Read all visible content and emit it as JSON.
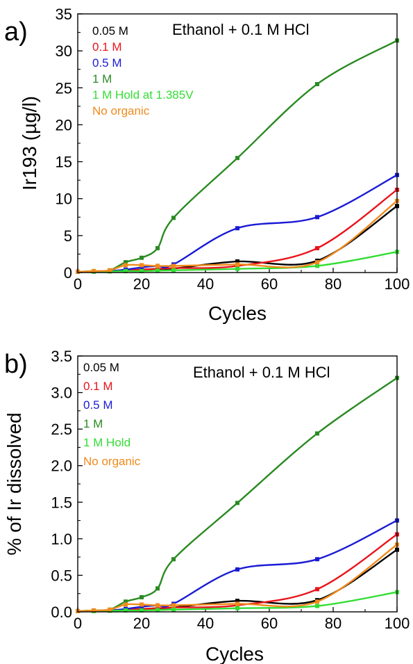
{
  "chart_data": [
    {
      "panel_label": "a)",
      "type": "line",
      "title": "Ethanol + 0.1 M HCl",
      "xlabel": "Cycles",
      "ylabel": "Ir193 (µg/l)",
      "xlim": [
        0,
        100
      ],
      "ylim": [
        0,
        35
      ],
      "xticks": [
        0,
        20,
        40,
        60,
        80,
        100
      ],
      "yticks": [
        0,
        5,
        10,
        15,
        20,
        25,
        30,
        35
      ],
      "grid": false,
      "legend": "top-left",
      "series": [
        {
          "name": "0.05 M",
          "color": "#000000",
          "x": [
            0,
            5,
            10,
            15,
            20,
            25,
            30,
            50,
            75,
            100
          ],
          "y": [
            0.1,
            0.15,
            0.2,
            0.3,
            0.4,
            0.5,
            0.55,
            1.5,
            1.6,
            9.0
          ]
        },
        {
          "name": "0.1 M",
          "color": "#e8141a",
          "x": [
            0,
            5,
            10,
            15,
            20,
            25,
            30,
            50,
            75,
            100
          ],
          "y": [
            0.1,
            0.15,
            0.2,
            0.3,
            0.4,
            0.5,
            0.6,
            0.9,
            3.3,
            11.2
          ]
        },
        {
          "name": "0.5 M",
          "color": "#1a1ad6",
          "x": [
            0,
            5,
            10,
            15,
            20,
            25,
            30,
            50,
            75,
            100
          ],
          "y": [
            0.1,
            0.15,
            0.2,
            0.4,
            0.7,
            0.9,
            1.1,
            6.0,
            7.5,
            13.2
          ]
        },
        {
          "name": "1 M",
          "color": "#2a8a22",
          "x": [
            0,
            5,
            10,
            15,
            20,
            25,
            30,
            50,
            75,
            100
          ],
          "y": [
            0.1,
            0.2,
            0.3,
            1.4,
            2.0,
            3.3,
            7.4,
            15.5,
            25.5,
            31.4
          ]
        },
        {
          "name": "1 M Hold at 1.385V",
          "color": "#33dd33",
          "x": [
            0,
            5,
            10,
            15,
            20,
            25,
            30,
            50,
            75,
            100
          ],
          "y": [
            0.1,
            0.1,
            0.15,
            0.2,
            0.2,
            0.25,
            0.3,
            0.5,
            0.9,
            2.8
          ]
        },
        {
          "name": "No organic",
          "color": "#f08a1c",
          "x": [
            0,
            5,
            10,
            15,
            20,
            25,
            30,
            50,
            75,
            100
          ],
          "y": [
            0.1,
            0.2,
            0.3,
            1.0,
            1.0,
            0.9,
            0.9,
            1.1,
            1.4,
            9.7
          ]
        }
      ]
    },
    {
      "panel_label": "b)",
      "type": "line",
      "title": "Ethanol + 0.1 M HCl",
      "xlabel": "Cycles",
      "ylabel": "% of Ir dissolved",
      "xlim": [
        0,
        100
      ],
      "ylim": [
        0,
        3.5
      ],
      "xticks": [
        0,
        20,
        40,
        60,
        80,
        100
      ],
      "yticks": [
        0.0,
        0.5,
        1.0,
        1.5,
        2.0,
        2.5,
        3.0,
        3.5
      ],
      "ytick_labels": [
        "0.0",
        "0.5",
        "1.0",
        "1.5",
        "2.0",
        "2.5",
        "3.0",
        "3.5"
      ],
      "grid": false,
      "legend": "top-left",
      "series": [
        {
          "name": "0.05 M",
          "color": "#000000",
          "x": [
            0,
            5,
            10,
            15,
            20,
            25,
            30,
            50,
            75,
            100
          ],
          "y": [
            0.01,
            0.015,
            0.02,
            0.03,
            0.04,
            0.05,
            0.06,
            0.15,
            0.16,
            0.85
          ]
        },
        {
          "name": "0.1 M",
          "color": "#e8141a",
          "x": [
            0,
            5,
            10,
            15,
            20,
            25,
            30,
            50,
            75,
            100
          ],
          "y": [
            0.01,
            0.015,
            0.02,
            0.03,
            0.04,
            0.05,
            0.06,
            0.09,
            0.31,
            1.06
          ]
        },
        {
          "name": "0.5 M",
          "color": "#1a1ad6",
          "x": [
            0,
            5,
            10,
            15,
            20,
            25,
            30,
            50,
            75,
            100
          ],
          "y": [
            0.01,
            0.015,
            0.02,
            0.04,
            0.07,
            0.09,
            0.11,
            0.58,
            0.72,
            1.25
          ]
        },
        {
          "name": "1 M",
          "color": "#2a8a22",
          "x": [
            0,
            5,
            10,
            15,
            20,
            25,
            30,
            50,
            75,
            100
          ],
          "y": [
            0.01,
            0.02,
            0.03,
            0.14,
            0.2,
            0.32,
            0.72,
            1.49,
            2.44,
            3.2
          ]
        },
        {
          "name": "1 M Hold",
          "color": "#33dd33",
          "x": [
            0,
            5,
            10,
            15,
            20,
            25,
            30,
            50,
            75,
            100
          ],
          "y": [
            0.01,
            0.01,
            0.015,
            0.02,
            0.02,
            0.025,
            0.03,
            0.05,
            0.08,
            0.27
          ]
        },
        {
          "name": "No organic",
          "color": "#f08a1c",
          "x": [
            0,
            5,
            10,
            15,
            20,
            25,
            30,
            50,
            75,
            100
          ],
          "y": [
            0.01,
            0.02,
            0.03,
            0.1,
            0.1,
            0.09,
            0.09,
            0.11,
            0.14,
            0.92
          ]
        }
      ]
    }
  ]
}
